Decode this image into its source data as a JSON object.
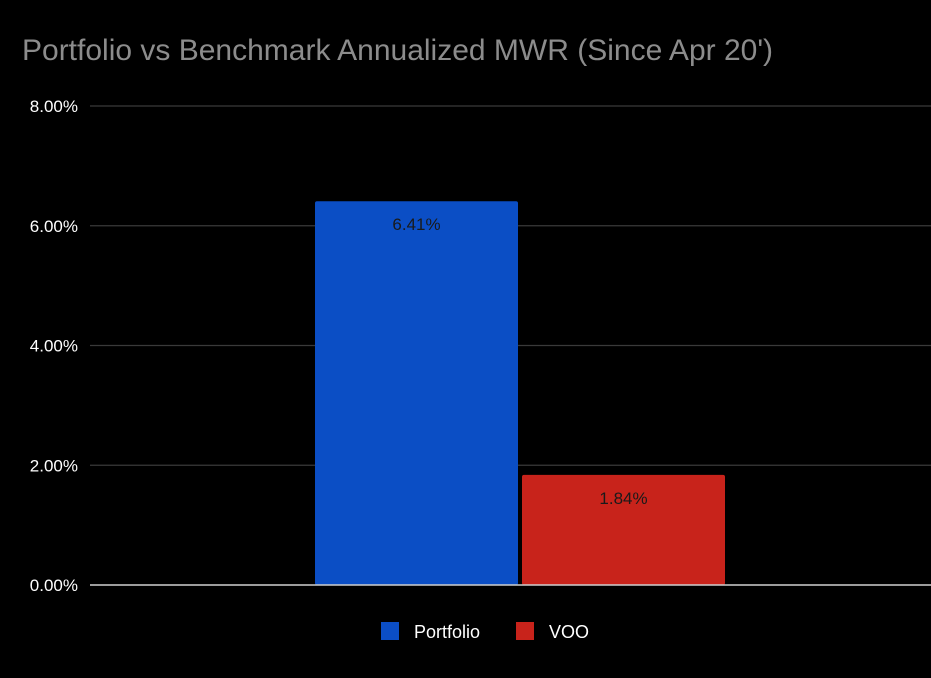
{
  "chart_data": {
    "type": "bar",
    "title": "Portfolio vs Benchmark Annualized MWR (Since Apr 20')",
    "xlabel": "",
    "ylabel": "",
    "ylim": [
      0,
      8
    ],
    "yticks": [
      {
        "value": 0,
        "label": "0.00%"
      },
      {
        "value": 2,
        "label": "2.00%"
      },
      {
        "value": 4,
        "label": "4.00%"
      },
      {
        "value": 6,
        "label": "6.00%"
      },
      {
        "value": 8,
        "label": "8.00%"
      }
    ],
    "categories": [
      ""
    ],
    "series": [
      {
        "name": "Portfolio",
        "values": [
          6.41
        ],
        "data_labels": [
          "6.41%"
        ],
        "color": "#0b4ec5",
        "label_color": "#1a1a1a"
      },
      {
        "name": "VOO",
        "values": [
          1.84
        ],
        "data_labels": [
          "1.84%"
        ],
        "color": "#c8231b",
        "label_color": "#1a1a1a"
      }
    ],
    "grid": true,
    "legend_position": "bottom",
    "colors": {
      "background": "#000000",
      "title": "#8c8c8c",
      "gridline": "#3a3a3a",
      "baseline": "#cfcfcf",
      "tick_text": "#ffffff"
    }
  }
}
